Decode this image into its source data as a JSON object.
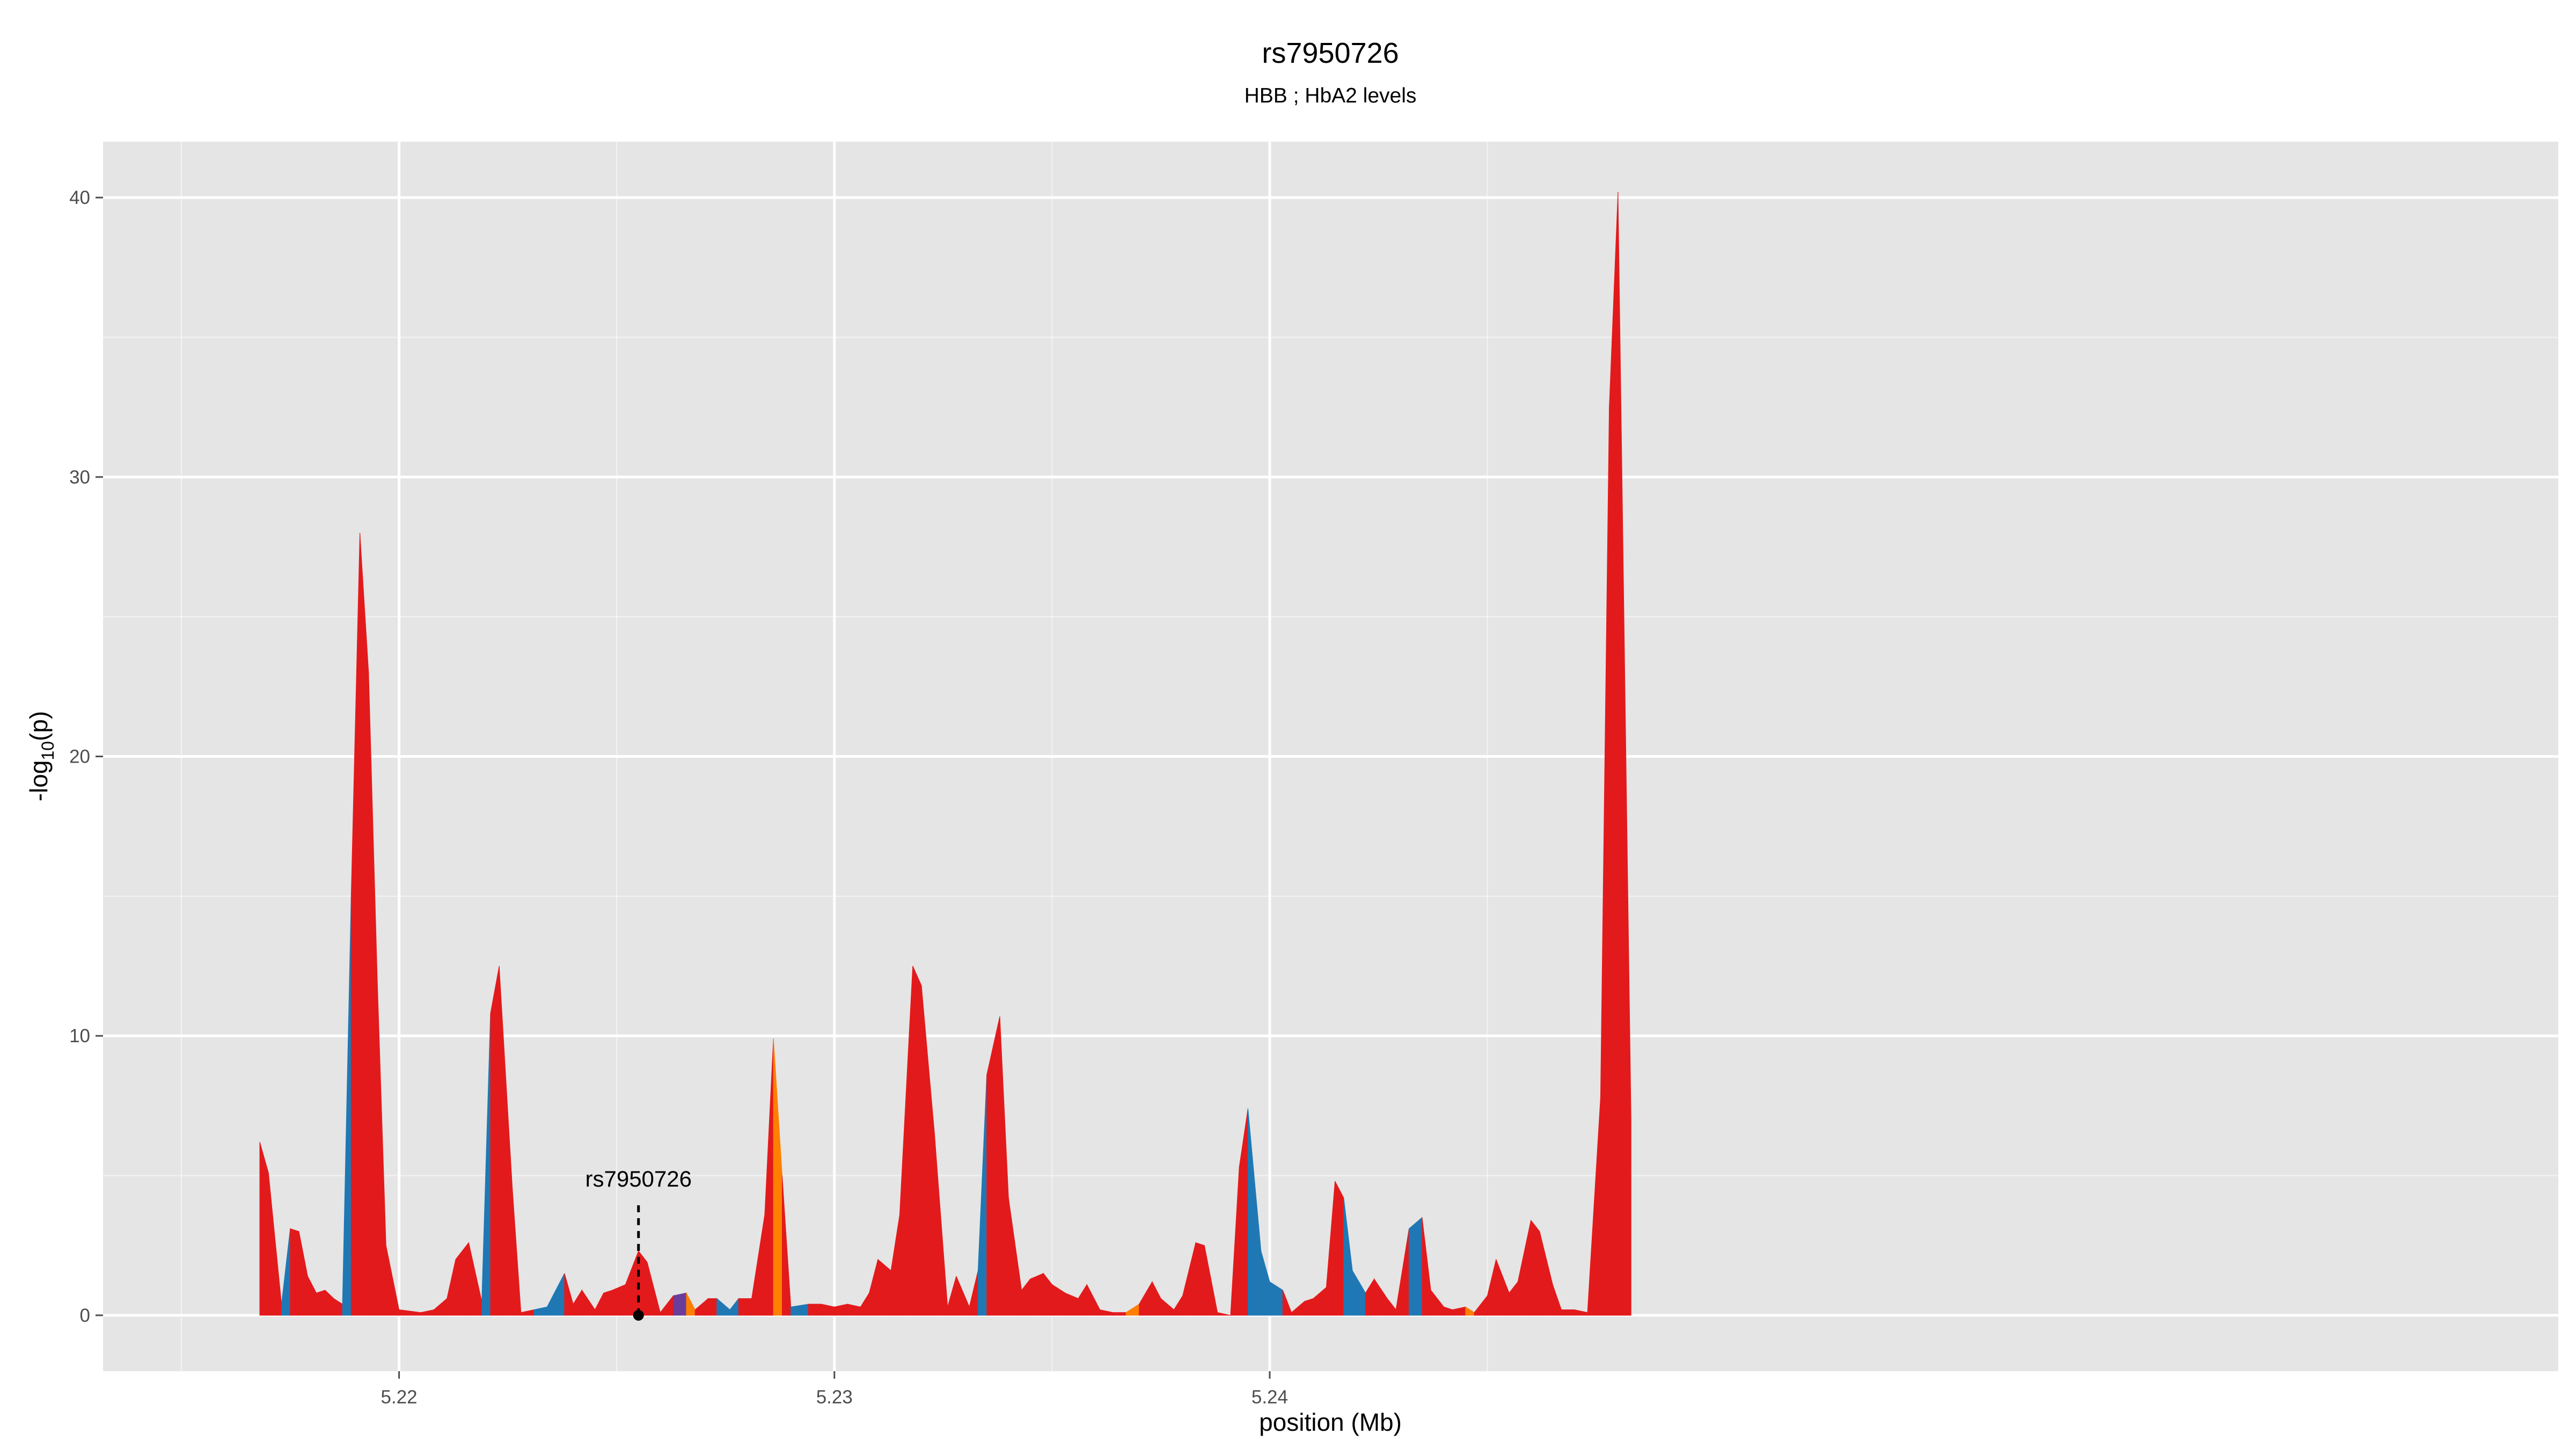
{
  "chart_data": {
    "type": "area",
    "title": "rs7950726",
    "subtitle": "HBB ; HbA2 levels",
    "xlabel": "position (Mb)",
    "ylabel": "-log10(p)",
    "xlim": [
      5.2132,
      5.2696
    ],
    "ylim": [
      -2,
      42
    ],
    "x_ticks": [
      5.22,
      5.23,
      5.24
    ],
    "x_tick_labels": [
      "5.22",
      "5.23",
      "5.24"
    ],
    "y_ticks": [
      0,
      10,
      20,
      30,
      40
    ],
    "y_tick_labels": [
      "0",
      "10",
      "20",
      "30",
      "40"
    ],
    "grid": true,
    "legend": "none",
    "colors": {
      "red": "#e31a1c",
      "blue": "#1f78b4",
      "orange": "#ff7f00",
      "purple": "#6a3d9a",
      "panel": "#e5e5e5",
      "grid": "#ffffff"
    },
    "series": [
      {
        "points": [
          [
            5.2168,
            6.2,
            "red"
          ],
          [
            5.217,
            5.1,
            "red"
          ],
          [
            5.2173,
            0.4,
            "blue"
          ],
          [
            5.2175,
            3.1,
            "red"
          ],
          [
            5.2177,
            3.0,
            "red"
          ],
          [
            5.2179,
            1.4,
            "red"
          ],
          [
            5.2181,
            0.8,
            "red"
          ],
          [
            5.2183,
            0.9,
            "red"
          ],
          [
            5.2185,
            0.6,
            "red"
          ],
          [
            5.2187,
            0.4,
            "blue"
          ],
          [
            5.2189,
            15.0,
            "red"
          ],
          [
            5.2191,
            28.0,
            "red"
          ],
          [
            5.2193,
            23.0,
            "red"
          ],
          [
            5.2195,
            12.0,
            "red"
          ],
          [
            5.2197,
            2.5,
            "red"
          ],
          [
            5.22,
            0.2,
            "red"
          ],
          [
            5.2205,
            0.1,
            "red"
          ],
          [
            5.2208,
            0.2,
            "red"
          ],
          [
            5.2211,
            0.6,
            "red"
          ],
          [
            5.2213,
            2.0,
            "red"
          ],
          [
            5.2216,
            2.6,
            "red"
          ],
          [
            5.2219,
            0.5,
            "blue"
          ],
          [
            5.2221,
            10.8,
            "red"
          ],
          [
            5.2223,
            12.5,
            "red"
          ],
          [
            5.2226,
            4.6,
            "red"
          ],
          [
            5.2228,
            0.1,
            "red"
          ],
          [
            5.2231,
            0.2,
            "blue"
          ],
          [
            5.2234,
            0.3,
            "blue"
          ],
          [
            5.2238,
            1.5,
            "red"
          ],
          [
            5.224,
            0.4,
            "red"
          ],
          [
            5.2242,
            0.9,
            "red"
          ],
          [
            5.2245,
            0.2,
            "red"
          ],
          [
            5.2247,
            0.8,
            "red"
          ],
          [
            5.2249,
            0.9,
            "red"
          ],
          [
            5.2252,
            1.1,
            "red"
          ],
          [
            5.2255,
            2.3,
            "red"
          ],
          [
            5.2257,
            1.9,
            "red"
          ],
          [
            5.226,
            0.1,
            "red"
          ],
          [
            5.2263,
            0.7,
            "purple"
          ],
          [
            5.2266,
            0.8,
            "orange"
          ],
          [
            5.2268,
            0.2,
            "red"
          ],
          [
            5.2271,
            0.6,
            "red"
          ],
          [
            5.2273,
            0.6,
            "blue"
          ],
          [
            5.2276,
            0.2,
            "blue"
          ],
          [
            5.2278,
            0.6,
            "red"
          ],
          [
            5.2281,
            0.6,
            "red"
          ],
          [
            5.2284,
            3.6,
            "red"
          ],
          [
            5.2286,
            9.9,
            "orange"
          ],
          [
            5.2288,
            5.0,
            "red"
          ],
          [
            5.229,
            0.3,
            "blue"
          ],
          [
            5.2294,
            0.4,
            "red"
          ],
          [
            5.2297,
            0.4,
            "red"
          ],
          [
            5.23,
            0.3,
            "red"
          ],
          [
            5.2303,
            0.4,
            "red"
          ],
          [
            5.2306,
            0.3,
            "red"
          ],
          [
            5.2308,
            0.8,
            "red"
          ],
          [
            5.231,
            2.0,
            "red"
          ],
          [
            5.2313,
            1.6,
            "red"
          ],
          [
            5.2315,
            3.6,
            "red"
          ],
          [
            5.2318,
            12.5,
            "red"
          ],
          [
            5.232,
            11.8,
            "red"
          ],
          [
            5.2323,
            6.5,
            "red"
          ],
          [
            5.2326,
            0.3,
            "red"
          ],
          [
            5.2328,
            1.4,
            "red"
          ],
          [
            5.2331,
            0.3,
            "red"
          ],
          [
            5.2333,
            1.6,
            "blue"
          ],
          [
            5.2335,
            8.6,
            "red"
          ],
          [
            5.2338,
            10.7,
            "red"
          ],
          [
            5.234,
            4.2,
            "red"
          ],
          [
            5.2343,
            0.9,
            "red"
          ],
          [
            5.2345,
            1.3,
            "red"
          ],
          [
            5.2348,
            1.5,
            "red"
          ],
          [
            5.235,
            1.1,
            "red"
          ],
          [
            5.2353,
            0.8,
            "red"
          ],
          [
            5.2356,
            0.6,
            "red"
          ],
          [
            5.2358,
            1.1,
            "red"
          ],
          [
            5.2361,
            0.2,
            "red"
          ],
          [
            5.2364,
            0.1,
            "red"
          ],
          [
            5.2367,
            0.1,
            "orange"
          ],
          [
            5.237,
            0.4,
            "red"
          ],
          [
            5.2373,
            1.2,
            "red"
          ],
          [
            5.2375,
            0.6,
            "red"
          ],
          [
            5.2378,
            0.2,
            "red"
          ],
          [
            5.238,
            0.7,
            "red"
          ],
          [
            5.2383,
            2.6,
            "red"
          ],
          [
            5.2385,
            2.5,
            "red"
          ],
          [
            5.2388,
            0.1,
            "red"
          ],
          [
            5.2391,
            0.0,
            "red"
          ],
          [
            5.2393,
            5.3,
            "red"
          ],
          [
            5.2395,
            7.4,
            "blue"
          ],
          [
            5.2398,
            2.3,
            "blue"
          ],
          [
            5.24,
            1.2,
            "blue"
          ],
          [
            5.2403,
            0.9,
            "red"
          ],
          [
            5.2405,
            0.1,
            "red"
          ],
          [
            5.2408,
            0.5,
            "red"
          ],
          [
            5.241,
            0.6,
            "red"
          ],
          [
            5.2413,
            1.0,
            "red"
          ],
          [
            5.2415,
            4.8,
            "red"
          ],
          [
            5.2417,
            4.2,
            "blue"
          ],
          [
            5.2419,
            1.6,
            "blue"
          ],
          [
            5.2422,
            0.8,
            "red"
          ],
          [
            5.2424,
            1.3,
            "red"
          ],
          [
            5.2427,
            0.6,
            "red"
          ],
          [
            5.2429,
            0.2,
            "red"
          ],
          [
            5.2432,
            3.1,
            "blue"
          ],
          [
            5.2435,
            3.5,
            "red"
          ],
          [
            5.2437,
            0.9,
            "red"
          ],
          [
            5.244,
            0.3,
            "red"
          ],
          [
            5.2442,
            0.2,
            "red"
          ],
          [
            5.2445,
            0.3,
            "orange"
          ],
          [
            5.2447,
            0.1,
            "red"
          ],
          [
            5.245,
            0.7,
            "red"
          ],
          [
            5.2452,
            2.0,
            "red"
          ],
          [
            5.2455,
            0.8,
            "red"
          ],
          [
            5.2457,
            1.2,
            "red"
          ],
          [
            5.246,
            3.4,
            "red"
          ],
          [
            5.2462,
            3.0,
            "red"
          ],
          [
            5.2465,
            1.1,
            "red"
          ],
          [
            5.2467,
            0.2,
            "red"
          ],
          [
            5.247,
            0.2,
            "red"
          ],
          [
            5.2473,
            0.1,
            "red"
          ],
          [
            5.2476,
            7.8,
            "red"
          ],
          [
            5.2478,
            32.5,
            "red"
          ],
          [
            5.248,
            40.2,
            "red"
          ],
          [
            5.2483,
            7.0,
            "red"
          ]
        ]
      }
    ],
    "annotation": {
      "label": "rs7950726",
      "x": 5.2255,
      "y": 0.0
    }
  }
}
